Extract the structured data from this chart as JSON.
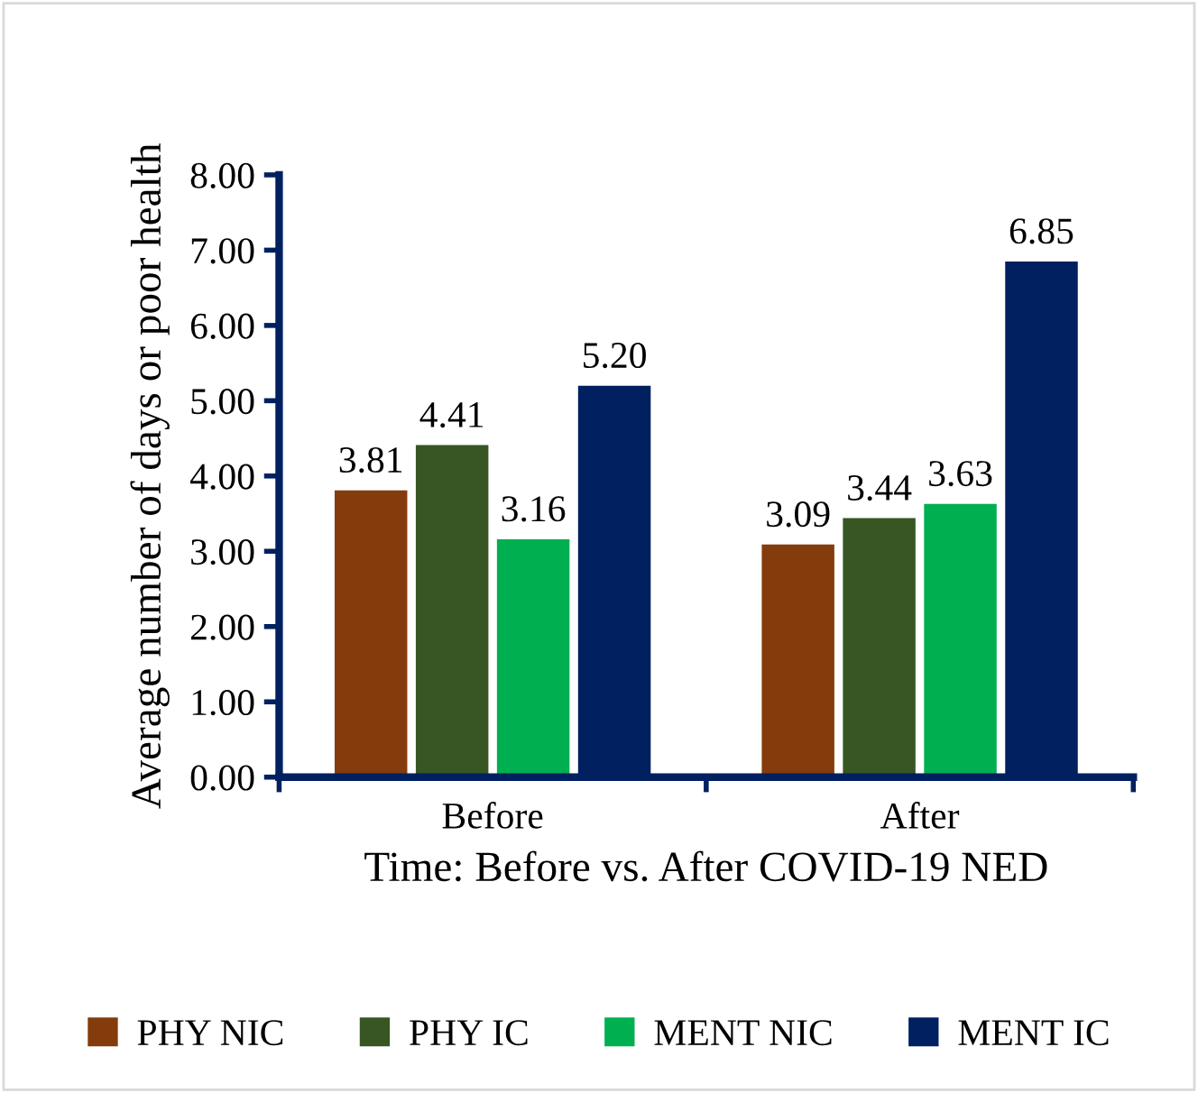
{
  "chart_data": {
    "type": "bar",
    "xlabel": "Time: Before vs. After COVID-19 NED",
    "ylabel": "Average number of days or poor health",
    "categories": [
      "Before",
      "After"
    ],
    "series": [
      {
        "name": "PHY NIC",
        "color": "#843c0c",
        "values": [
          3.81,
          3.09
        ],
        "value_labels": [
          "3.81",
          "3.09"
        ]
      },
      {
        "name": "PHY IC",
        "color": "#375623",
        "values": [
          4.41,
          3.44
        ],
        "value_labels": [
          "4.41",
          "3.44"
        ]
      },
      {
        "name": "MENT NIC",
        "color": "#00b050",
        "values": [
          3.16,
          3.63
        ],
        "value_labels": [
          "3.16",
          "3.63"
        ]
      },
      {
        "name": "MENT IC",
        "color": "#002060",
        "values": [
          5.2,
          6.85
        ],
        "value_labels": [
          "5.20",
          "6.85"
        ]
      }
    ],
    "ylim": [
      0,
      8
    ],
    "yticks": [
      {
        "value": 0,
        "label": "0.00"
      },
      {
        "value": 1,
        "label": "1.00"
      },
      {
        "value": 2,
        "label": "2.00"
      },
      {
        "value": 3,
        "label": "3.00"
      },
      {
        "value": 4,
        "label": "4.00"
      },
      {
        "value": 5,
        "label": "5.00"
      },
      {
        "value": 6,
        "label": "6.00"
      },
      {
        "value": 7,
        "label": "7.00"
      },
      {
        "value": 8,
        "label": "8.00"
      }
    ],
    "grid": false,
    "legend": "bottom"
  }
}
